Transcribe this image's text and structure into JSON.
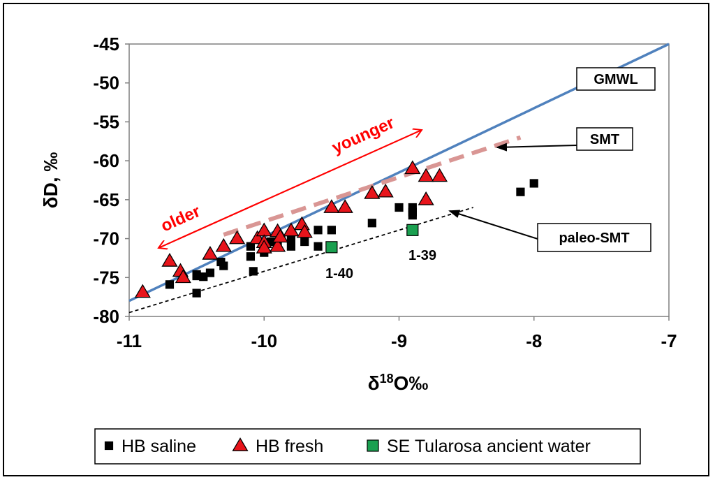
{
  "chart_data": {
    "type": "scatter",
    "xlabel": "δ18O‰",
    "xlabel_main": "δ",
    "xlabel_sup": "18",
    "xlabel_rest": "O‰",
    "ylabel": "δD, ‰",
    "xlim": [
      -11,
      -7
    ],
    "ylim": [
      -80,
      -45
    ],
    "xticks": [
      -11,
      -10,
      -9,
      -8,
      -7
    ],
    "yticks": [
      -45,
      -50,
      -55,
      -60,
      -65,
      -70,
      -75,
      -80
    ],
    "grid": false,
    "legend_position": "bottom",
    "series": [
      {
        "name": "HB saline",
        "marker": "square",
        "color": "#000000",
        "points": [
          [
            -10.7,
            -75.9
          ],
          [
            -10.5,
            -74.8
          ],
          [
            -10.5,
            -74.6
          ],
          [
            -10.45,
            -74.9
          ],
          [
            -10.5,
            -77.0
          ],
          [
            -10.4,
            -74.4
          ],
          [
            -10.3,
            -73.5
          ],
          [
            -10.32,
            -73.0
          ],
          [
            -10.1,
            -72.3
          ],
          [
            -10.1,
            -71.0
          ],
          [
            -10.08,
            -74.2
          ],
          [
            -10.0,
            -71.8
          ],
          [
            -10.0,
            -71.0
          ],
          [
            -9.95,
            -70.4
          ],
          [
            -9.9,
            -70.8
          ],
          [
            -9.8,
            -71.0
          ],
          [
            -9.8,
            -70.0
          ],
          [
            -9.7,
            -70.4
          ],
          [
            -9.6,
            -71.0
          ],
          [
            -9.6,
            -68.9
          ],
          [
            -9.5,
            -68.9
          ],
          [
            -9.2,
            -68.0
          ],
          [
            -9.0,
            -66.0
          ],
          [
            -8.9,
            -66.0
          ],
          [
            -8.9,
            -66.6
          ],
          [
            -8.9,
            -67.0
          ],
          [
            -8.1,
            -64.0
          ],
          [
            -8.0,
            -62.9
          ]
        ]
      },
      {
        "name": "HB fresh",
        "marker": "triangle",
        "color": "#e8141b",
        "points": [
          [
            -10.9,
            -76.9
          ],
          [
            -10.7,
            -72.9
          ],
          [
            -10.62,
            -74.2
          ],
          [
            -10.6,
            -75.0
          ],
          [
            -10.4,
            -72.0
          ],
          [
            -10.3,
            -71.0
          ],
          [
            -10.2,
            -70.0
          ],
          [
            -10.05,
            -70.0
          ],
          [
            -10.0,
            -69.0
          ],
          [
            -10.0,
            -70.5
          ],
          [
            -10.0,
            -71.2
          ],
          [
            -9.9,
            -69.1
          ],
          [
            -9.9,
            -71.0
          ],
          [
            -9.88,
            -69.8
          ],
          [
            -9.8,
            -69.0
          ],
          [
            -9.72,
            -68.2
          ],
          [
            -9.7,
            -69.2
          ],
          [
            -9.5,
            -66.0
          ],
          [
            -9.4,
            -66.0
          ],
          [
            -9.2,
            -64.2
          ],
          [
            -9.1,
            -64.0
          ],
          [
            -8.9,
            -61.0
          ],
          [
            -8.8,
            -62.0
          ],
          [
            -8.8,
            -65.0
          ],
          [
            -8.7,
            -62.0
          ]
        ]
      },
      {
        "name": "SE Tularosa ancient water",
        "marker": "square",
        "color": "#1aa050",
        "points": [
          [
            -9.5,
            -71.1
          ],
          [
            -8.9,
            -68.9
          ]
        ]
      }
    ],
    "lines": [
      {
        "name": "GMWL",
        "style": "solid",
        "color": "#4f81bd",
        "points": [
          [
            -11.0,
            -78.0
          ],
          [
            -7.0,
            -45.0
          ]
        ]
      },
      {
        "name": "SMT",
        "style": "dashed",
        "color": "#d99694",
        "points": [
          [
            -10.3,
            -69.5
          ],
          [
            -8.1,
            -57.0
          ]
        ]
      },
      {
        "name": "paleo-SMT",
        "style": "dotted",
        "color": "#000000",
        "points": [
          [
            -11.0,
            -79.5
          ],
          [
            -8.45,
            -66.0
          ]
        ]
      }
    ],
    "annotations": {
      "callouts": [
        {
          "text": "GMWL"
        },
        {
          "text": "SMT"
        },
        {
          "text": "paleo-SMT"
        }
      ],
      "point_labels": [
        {
          "text": "1-40"
        },
        {
          "text": "1-39"
        }
      ],
      "trend_arrow": {
        "younger": "younger",
        "older": "older"
      }
    }
  }
}
